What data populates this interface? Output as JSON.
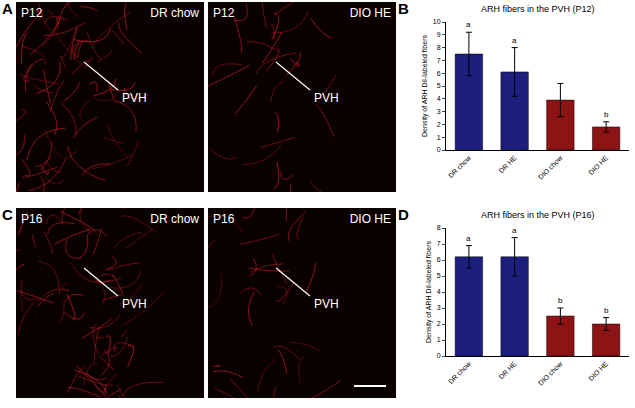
{
  "image_panels": [
    {
      "panel": "A",
      "images": [
        {
          "age": "P12",
          "group": "DR chow",
          "region": "PVH"
        },
        {
          "age": "P12",
          "group": "DIO HE",
          "region": "PVH"
        }
      ]
    },
    {
      "panel": "C",
      "images": [
        {
          "age": "P16",
          "group": "DR chow",
          "region": "PVH"
        },
        {
          "age": "P16",
          "group": "DIO HE",
          "region": "PVH"
        }
      ]
    }
  ],
  "chart_data": [
    {
      "panel": "B",
      "type": "bar",
      "title": "ARH fibers in the PVH (P12)",
      "y_label": "Density of ARH DiI-labeled fibers",
      "categories": [
        "DR chow",
        "DR HE",
        "DIO chow",
        "DIO HE"
      ],
      "values": [
        7.5,
        6.1,
        3.9,
        1.8
      ],
      "error": [
        1.7,
        1.9,
        1.3,
        0.4
      ],
      "colors": [
        "#1c1f7e",
        "#1c1f7e",
        "#8c1414",
        "#8c1414"
      ],
      "annotations": [
        {
          "x": "DR chow",
          "text": "a"
        },
        {
          "x": "DR HE",
          "text": "a"
        },
        {
          "x": "DIO HE",
          "text": "b"
        }
      ],
      "ylim": [
        0,
        10
      ],
      "yticks": [
        0,
        1,
        2,
        3,
        4,
        5,
        6,
        7,
        8,
        9,
        10
      ],
      "grid": false
    },
    {
      "panel": "D",
      "type": "bar",
      "title": "ARH fibers in the PVH (P16)",
      "y_label": "Density of ARH DiI-labeled fibers",
      "categories": [
        "DR chow",
        "DR HE",
        "DIO chow",
        "DIO HE"
      ],
      "values": [
        6.2,
        6.2,
        2.5,
        2.0
      ],
      "error": [
        0.7,
        1.2,
        0.5,
        0.4
      ],
      "colors": [
        "#1c1f7e",
        "#1c1f7e",
        "#8c1414",
        "#8c1414"
      ],
      "annotations": [
        {
          "x": "DR chow",
          "text": "a"
        },
        {
          "x": "DR HE",
          "text": "a"
        },
        {
          "x": "DIO chow",
          "text": "b"
        },
        {
          "x": "DIO HE",
          "text": "b"
        }
      ],
      "ylim": [
        0,
        8
      ],
      "yticks": [
        0,
        1,
        2,
        3,
        4,
        5,
        6,
        7,
        8
      ],
      "grid": false
    }
  ]
}
